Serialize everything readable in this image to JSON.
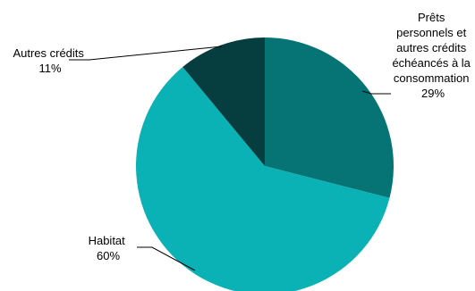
{
  "chart_data": {
    "type": "pie",
    "title": "",
    "legend": "none",
    "slices": [
      {
        "label_lines": [
          "Prêts",
          "personnels et",
          "autres crédits",
          "échéancés à la",
          "consommation"
        ],
        "percent_label": "29%",
        "value": 29,
        "color": "#067474"
      },
      {
        "label_lines": [
          "Habitat"
        ],
        "percent_label": "60%",
        "value": 60,
        "color": "#0AB1B5"
      },
      {
        "label_lines": [
          "Autres crédits"
        ],
        "percent_label": "11%",
        "value": 11,
        "color": "#063D3F"
      }
    ]
  }
}
